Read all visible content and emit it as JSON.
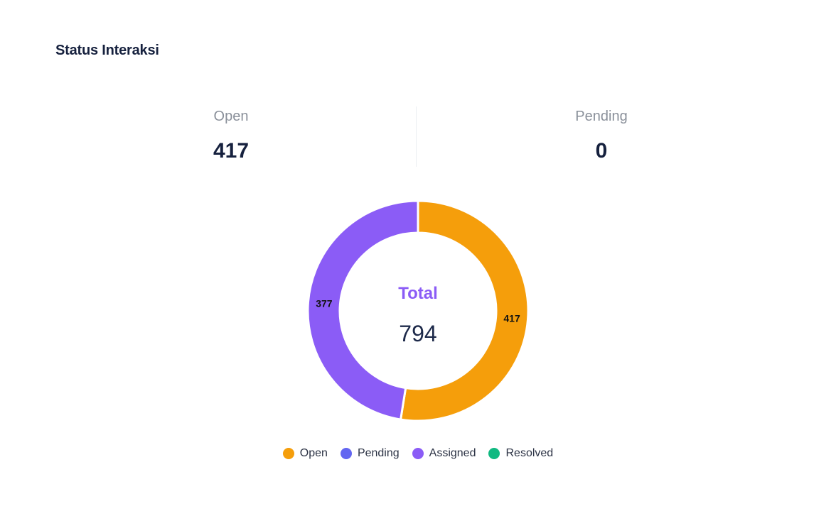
{
  "card": {
    "title": "Status Interaksi"
  },
  "stats": [
    {
      "label": "Open",
      "value": "417"
    },
    {
      "label": "Pending",
      "value": "0"
    }
  ],
  "center": {
    "title": "Total",
    "value": "794"
  },
  "chart_data": {
    "type": "pie",
    "variant": "donut",
    "title": "",
    "slices": [
      {
        "name": "Open",
        "value": 417,
        "color": "#f59e0b",
        "label": "417"
      },
      {
        "name": "Pending",
        "value": 0,
        "color": "#6366f1",
        "label": ""
      },
      {
        "name": "Assigned",
        "value": 377,
        "color": "#8b5cf6",
        "label": "377"
      },
      {
        "name": "Resolved",
        "value": 0,
        "color": "#10b981",
        "label": ""
      }
    ],
    "total": 794,
    "legend_position": "bottom"
  },
  "legend": [
    {
      "label": "Open",
      "color": "#f59e0b"
    },
    {
      "label": "Pending",
      "color": "#6366f1"
    },
    {
      "label": "Assigned",
      "color": "#8b5cf6"
    },
    {
      "label": "Resolved",
      "color": "#10b981"
    }
  ]
}
